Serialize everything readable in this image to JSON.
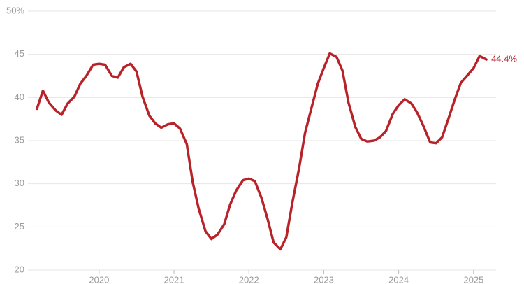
{
  "chart_data": {
    "type": "line",
    "x": [
      2019.17,
      2019.25,
      2019.33,
      2019.42,
      2019.5,
      2019.58,
      2019.67,
      2019.75,
      2019.83,
      2019.92,
      2020,
      2020.08,
      2020.17,
      2020.25,
      2020.33,
      2020.42,
      2020.5,
      2020.58,
      2020.67,
      2020.75,
      2020.83,
      2020.92,
      2021,
      2021.08,
      2021.17,
      2021.25,
      2021.33,
      2021.42,
      2021.5,
      2021.58,
      2021.67,
      2021.75,
      2021.83,
      2021.92,
      2022,
      2022.08,
      2022.17,
      2022.25,
      2022.33,
      2022.42,
      2022.5,
      2022.58,
      2022.67,
      2022.75,
      2022.83,
      2022.92,
      2023,
      2023.08,
      2023.17,
      2023.25,
      2023.33,
      2023.42,
      2023.5,
      2023.58,
      2023.67,
      2023.75,
      2023.83,
      2023.92,
      2024,
      2024.08,
      2024.17,
      2024.25,
      2024.33,
      2024.42,
      2024.5,
      2024.58,
      2024.67,
      2024.75,
      2024.83,
      2024.92,
      2025,
      2025.08,
      2025.17
    ],
    "series": [
      {
        "color": "#b8232a",
        "values": [
          38.7,
          40.8,
          39.4,
          38.5,
          38.0,
          39.3,
          40.1,
          41.6,
          42.5,
          43.8,
          43.9,
          43.8,
          42.5,
          42.3,
          43.5,
          43.9,
          43.0,
          40.1,
          37.9,
          37.0,
          36.5,
          36.9,
          37.0,
          36.4,
          34.6,
          30.2,
          27.1,
          24.5,
          23.6,
          24.1,
          25.3,
          27.6,
          29.2,
          30.4,
          30.6,
          30.3,
          28.3,
          25.9,
          23.2,
          22.4,
          23.8,
          27.8,
          31.8,
          35.9,
          38.6,
          41.6,
          43.4,
          45.1,
          44.7,
          43.1,
          39.4,
          36.6,
          35.2,
          34.9,
          35.0,
          35.4,
          36.1,
          38.1,
          39.1,
          39.8,
          39.3,
          38.2,
          36.7,
          34.8,
          34.7,
          35.4,
          37.7,
          39.8,
          41.7,
          42.6,
          43.4,
          44.8,
          44.4
        ],
        "value_labels": [
          null,
          null,
          null,
          null,
          null,
          null,
          null,
          null,
          null,
          null,
          null,
          null,
          null,
          null,
          null,
          null,
          null,
          null,
          null,
          null,
          null,
          null,
          null,
          null,
          null,
          null,
          null,
          null,
          null,
          null,
          null,
          null,
          null,
          null,
          null,
          null,
          null,
          null,
          null,
          null,
          null,
          null,
          null,
          null,
          null,
          null,
          null,
          null,
          null,
          null,
          null,
          null,
          null,
          null,
          null,
          null,
          null,
          null,
          null,
          null,
          null,
          null,
          null,
          null,
          null,
          null,
          null,
          null,
          null,
          null,
          null,
          null,
          "44.4%"
        ]
      }
    ],
    "xlim": [
      2019.05,
      2025.3
    ],
    "xticks": [
      2020,
      2021,
      2022,
      2023,
      2024,
      2025
    ],
    "ylim": [
      20,
      50
    ],
    "yticks": [
      20,
      25,
      30,
      35,
      40,
      45,
      {
        "value": 50,
        "label": "50%"
      }
    ],
    "grid": true
  }
}
